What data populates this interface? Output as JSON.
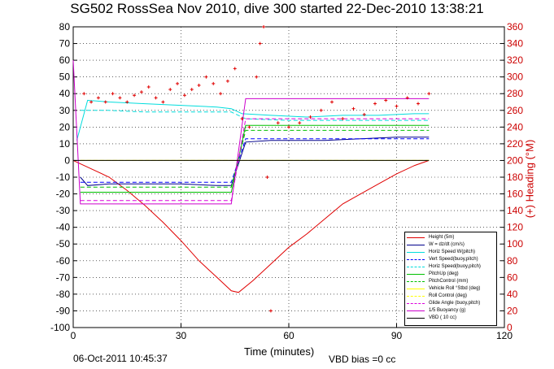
{
  "window": {
    "title": "SG502 RossSea Nov 2010, dive 300 started 22-Dec-2010 13:38:21"
  },
  "footer": {
    "date": "06-Oct-2011 10:45:37",
    "vbd_bias": "VBD bias =0 cc"
  },
  "chart_data": {
    "type": "line",
    "title": "SG502 RossSea Nov 2010, dive 300 started 22-Dec-2010 13:38:21",
    "xlabel": "Time (minutes)",
    "ylabel_right": "(+) Heading (°M)",
    "xlim": [
      0,
      120
    ],
    "ylim": [
      -100,
      80
    ],
    "ylim_right": [
      0,
      360
    ],
    "xticks": [
      "0",
      "30",
      "60",
      "90",
      "120"
    ],
    "yticks": [
      "80",
      "70",
      "60",
      "50",
      "40",
      "30",
      "20",
      "10",
      "0",
      "-10",
      "-20",
      "-30",
      "-40",
      "-50",
      "-60",
      "-70",
      "-80",
      "-90",
      "-100"
    ],
    "yticks_right": [
      "360",
      "340",
      "320",
      "300",
      "280",
      "260",
      "240",
      "220",
      "200",
      "180",
      "160",
      "140",
      "120",
      "100",
      "80",
      "60",
      "40",
      "20",
      "0"
    ],
    "grid": true,
    "legend_position": "lower-right",
    "series": [
      {
        "name": "Height (5m)",
        "color": "#e00000",
        "style": "solid",
        "x": [
          0,
          5,
          10,
          15,
          20,
          25,
          30,
          35,
          40,
          44,
          46,
          50,
          55,
          60,
          65,
          70,
          75,
          80,
          85,
          90,
          95,
          99
        ],
        "y": [
          0,
          -5,
          -10,
          -18,
          -27,
          -37,
          -48,
          -60,
          -70,
          -78,
          -79,
          -72,
          -62,
          -52,
          -44,
          -35,
          -26,
          -20,
          -14,
          -8,
          -3,
          0
        ]
      },
      {
        "name": "W = dz/dt (cm/s)",
        "color": "#00008b",
        "style": "solid",
        "x": [
          2,
          4,
          10,
          20,
          30,
          40,
          44,
          48,
          55,
          60,
          70,
          80,
          90,
          99
        ],
        "y": [
          -10,
          -15,
          -14,
          -14,
          -14,
          -15,
          -15,
          11,
          12,
          12,
          12,
          13,
          14,
          14
        ]
      },
      {
        "name": "Horiz Speed W(pitch)",
        "color": "#00dddd",
        "style": "solid",
        "x": [
          1,
          4,
          10,
          20,
          30,
          40,
          44,
          47,
          55,
          65,
          75,
          85,
          95,
          99
        ],
        "y": [
          12,
          36,
          35,
          34,
          33,
          32,
          31,
          28,
          27,
          26,
          27,
          27,
          28,
          28
        ]
      },
      {
        "name": "Vert Speed(buoy,pitch)",
        "color": "#0000ff",
        "style": "dashed",
        "x": [
          2,
          10,
          20,
          30,
          40,
          44,
          48,
          60,
          80,
          99
        ],
        "y": [
          -13,
          -13,
          -13,
          -13,
          -13,
          -13,
          13,
          13,
          13,
          13
        ]
      },
      {
        "name": "Horiz Speed(buoy,pitch)",
        "color": "#00dddd",
        "style": "dashed",
        "x": [
          2,
          10,
          20,
          30,
          40,
          44,
          48,
          60,
          80,
          99
        ],
        "y": [
          30,
          30,
          29,
          29,
          29,
          29,
          25,
          24,
          24,
          24
        ]
      },
      {
        "name": "PitchUp (deg)",
        "color": "#00c000",
        "style": "solid",
        "x": [
          2,
          10,
          20,
          30,
          40,
          44,
          48,
          60,
          80,
          99
        ],
        "y": [
          -19,
          -19,
          -19,
          -19,
          -19,
          -19,
          21,
          21,
          21,
          21
        ]
      },
      {
        "name": "PitchControl (mm)",
        "color": "#00c000",
        "style": "dashed",
        "x": [
          2,
          10,
          20,
          30,
          40,
          44,
          48,
          60,
          80,
          99
        ],
        "y": [
          -16,
          -16,
          -16,
          -16,
          -16,
          -16,
          18,
          18,
          18,
          18
        ]
      },
      {
        "name": "Vehicle Roll °Stbd (deg)",
        "color": "#ffff00",
        "style": "solid",
        "x": [
          2,
          5,
          10,
          20,
          30,
          40,
          44,
          48,
          50,
          55,
          60,
          70,
          80,
          90,
          99
        ],
        "y": [
          0,
          0,
          0,
          0,
          0,
          0,
          0,
          0,
          0,
          0,
          0,
          0,
          0,
          0,
          0
        ]
      },
      {
        "name": "Roll Control (deg)",
        "color": "#ffff00",
        "style": "dashed",
        "x": [
          2,
          99
        ],
        "y": [
          0,
          0
        ]
      },
      {
        "name": "Glide Angle (buoy,pitch)",
        "color": "#dd00dd",
        "style": "dashed",
        "x": [
          2,
          10,
          20,
          30,
          40,
          44,
          48,
          60,
          80,
          99
        ],
        "y": [
          -24,
          -24,
          -24,
          -24,
          -24,
          -24,
          25,
          25,
          25,
          25
        ]
      },
      {
        "name": "1/5 Buoyancy (g)",
        "color": "#cc00cc",
        "style": "solid",
        "x": [
          0,
          2,
          10,
          20,
          30,
          40,
          44,
          48,
          60,
          80,
          99
        ],
        "y": [
          60,
          -26,
          -26,
          -26,
          -26,
          -26,
          -26,
          37,
          37,
          37,
          37
        ]
      },
      {
        "name": "VBD ( 10 cc)",
        "color": "#000000",
        "style": "solid",
        "x": [
          0,
          2,
          10,
          20,
          30,
          40,
          44,
          48,
          60,
          80,
          99
        ],
        "y": [
          0,
          0,
          0,
          0,
          0,
          0,
          0,
          0,
          0,
          0,
          0
        ]
      }
    ],
    "heading_series": {
      "name": "Heading",
      "axis": "right",
      "color": "#e00000",
      "marker": "+",
      "x": [
        3,
        5,
        7,
        9,
        11,
        13,
        15,
        17,
        19,
        21,
        23,
        25,
        27,
        29,
        31,
        33,
        35,
        37,
        39,
        41,
        43,
        45,
        47,
        49,
        51,
        52,
        53,
        54,
        55,
        57,
        60,
        63,
        66,
        69,
        72,
        75,
        78,
        81,
        84,
        87,
        90,
        93,
        96,
        99
      ],
      "y": [
        280,
        270,
        275,
        270,
        280,
        275,
        270,
        278,
        282,
        288,
        275,
        270,
        285,
        292,
        278,
        285,
        290,
        300,
        292,
        280,
        295,
        310,
        250,
        240,
        300,
        340,
        360,
        180,
        20,
        245,
        240,
        245,
        252,
        260,
        270,
        250,
        262,
        255,
        268,
        272,
        265,
        275,
        268,
        280
      ]
    }
  }
}
